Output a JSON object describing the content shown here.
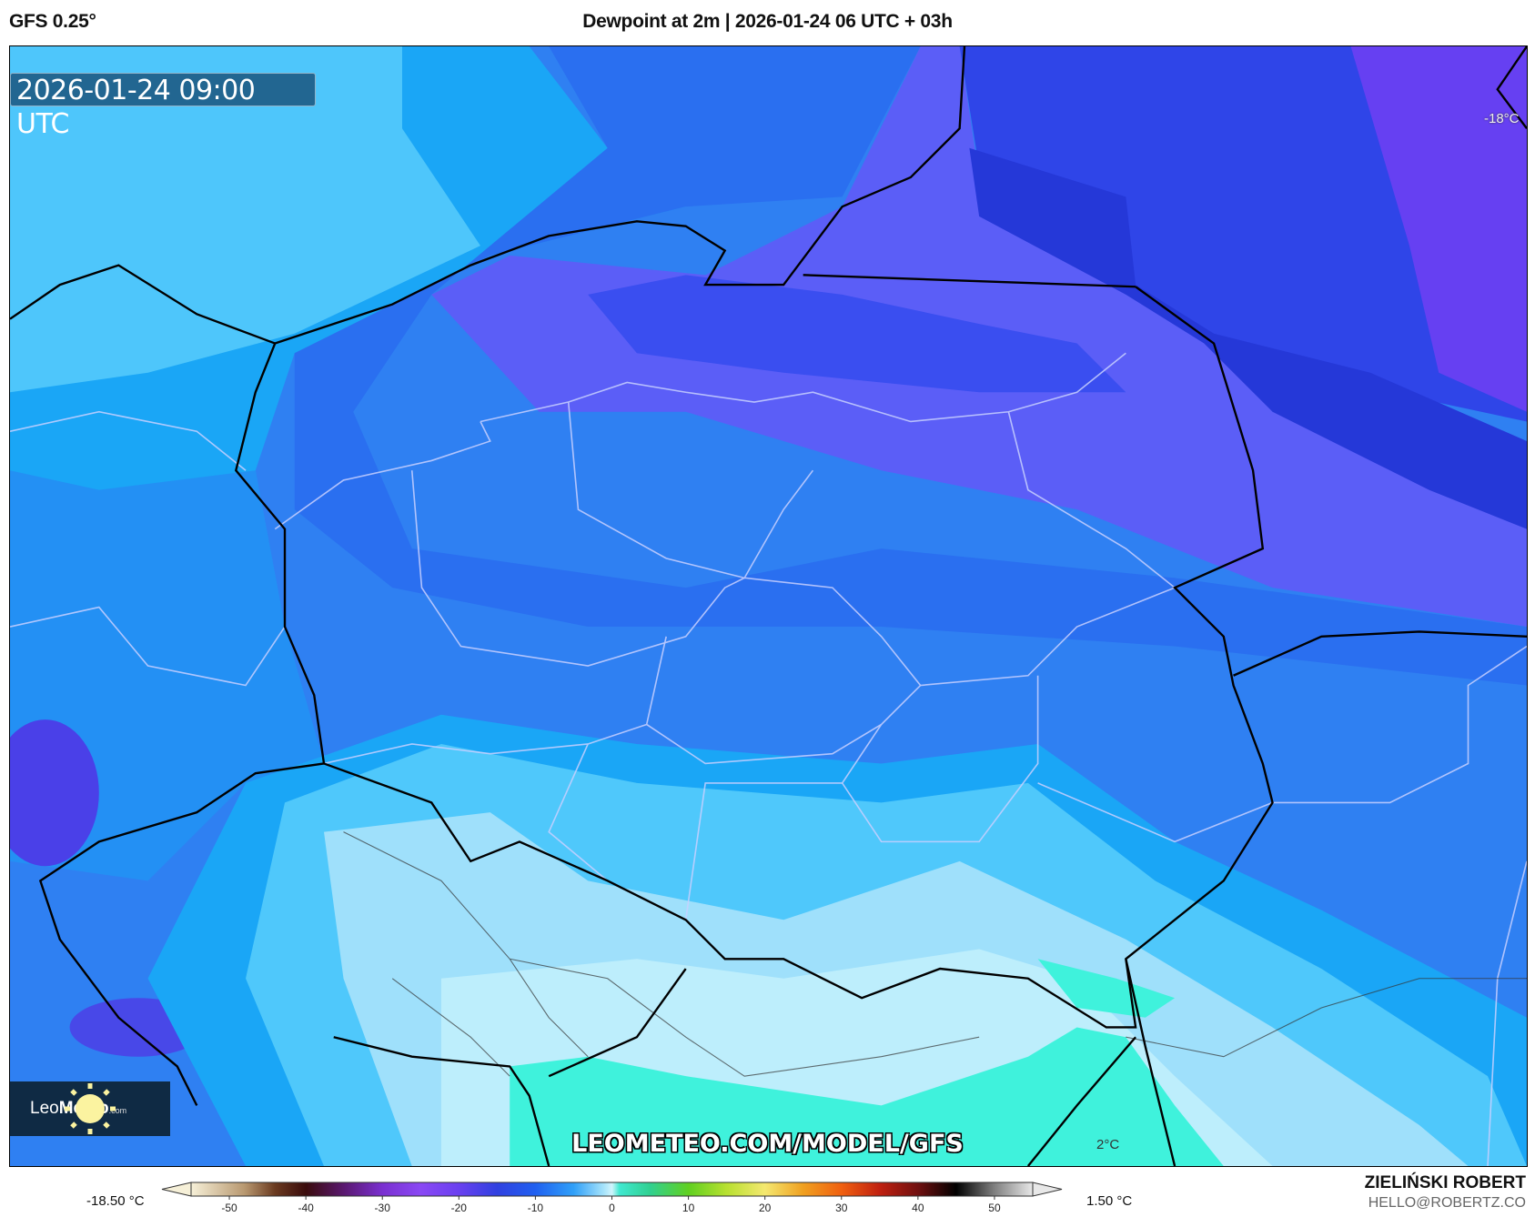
{
  "header": {
    "model": "GFS 0.25°",
    "title": "Dewpoint at 2m | 2026-01-24 06 UTC + 03h"
  },
  "map": {
    "valid_time": "2026-01-24 09:00 UTC",
    "watermark": "LEOMETEO.COM/MODEL/GFS",
    "labels": {
      "min_point": "-18°C",
      "max_point": "2°C"
    },
    "logo": {
      "light": "Leo",
      "bold": "Meteo",
      "suffix": ".com"
    }
  },
  "colorbar": {
    "unit": "°C",
    "min_label": "-18.50 °C",
    "max_label": "1.50 °C",
    "ticks": [
      -50,
      -40,
      -30,
      -20,
      -10,
      0,
      10,
      20,
      30,
      40,
      50
    ],
    "tick_labels": [
      "-50",
      "-40",
      "-30",
      "-20",
      "-10",
      "0",
      "10",
      "20",
      "30",
      "40",
      "50"
    ],
    "range": [
      -55,
      55
    ],
    "stops": [
      [
        -55,
        "#f6f0d8"
      ],
      [
        -48,
        "#b89870"
      ],
      [
        -44,
        "#6a3a20"
      ],
      [
        -40,
        "#3a0c0c"
      ],
      [
        -35,
        "#5a1870"
      ],
      [
        -30,
        "#7a30d0"
      ],
      [
        -25,
        "#8a48f4"
      ],
      [
        -20,
        "#6a40f0"
      ],
      [
        -15,
        "#3040e0"
      ],
      [
        -10,
        "#2060f0"
      ],
      [
        -5,
        "#30a0f8"
      ],
      [
        -1,
        "#a8e4fb"
      ],
      [
        0,
        "#d0f4fc"
      ],
      [
        1,
        "#40e8d0"
      ],
      [
        5,
        "#30d090"
      ],
      [
        10,
        "#60d020"
      ],
      [
        15,
        "#b8e030"
      ],
      [
        20,
        "#f4e870"
      ],
      [
        25,
        "#f0a020"
      ],
      [
        30,
        "#f06010"
      ],
      [
        35,
        "#c02010"
      ],
      [
        40,
        "#701010"
      ],
      [
        45,
        "#000000"
      ],
      [
        50,
        "#808080"
      ],
      [
        55,
        "#e8e8e8"
      ]
    ]
  },
  "credits": {
    "author": "ZIELIŃSKI ROBERT",
    "email": "HELLO@ROBERTZ.CO"
  }
}
